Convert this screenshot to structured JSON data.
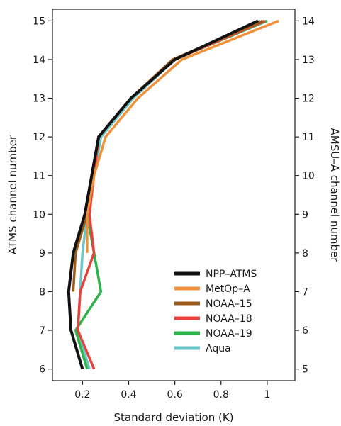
{
  "chart_data": {
    "type": "line",
    "xlabel": "Standard deviation (K)",
    "ylabel": "ATMS channel number",
    "y2label": "AMSU–A channel number",
    "xlim": [
      0.07,
      1.12
    ],
    "ylim": [
      5.7,
      15.3
    ],
    "xticks": [
      {
        "value": 0.2,
        "label": "0.2"
      },
      {
        "value": 0.4,
        "label": "0.4"
      },
      {
        "value": 0.6,
        "label": "0.6"
      },
      {
        "value": 0.8,
        "label": "0.8"
      },
      {
        "value": 1.0,
        "label": "1"
      }
    ],
    "yticks": [
      {
        "value": 6,
        "label": "6"
      },
      {
        "value": 7,
        "label": "7"
      },
      {
        "value": 8,
        "label": "8"
      },
      {
        "value": 9,
        "label": "9"
      },
      {
        "value": 10,
        "label": "10"
      },
      {
        "value": 11,
        "label": "11"
      },
      {
        "value": 12,
        "label": "12"
      },
      {
        "value": 13,
        "label": "13"
      },
      {
        "value": 14,
        "label": "14"
      },
      {
        "value": 15,
        "label": "15"
      }
    ],
    "y2ticks": [
      {
        "value": 6,
        "label": "5"
      },
      {
        "value": 7,
        "label": "6"
      },
      {
        "value": 8,
        "label": "7"
      },
      {
        "value": 9,
        "label": "8"
      },
      {
        "value": 10,
        "label": "9"
      },
      {
        "value": 11,
        "label": "10"
      },
      {
        "value": 12,
        "label": "11"
      },
      {
        "value": 13,
        "label": "12"
      },
      {
        "value": 14,
        "label": "13"
      },
      {
        "value": 15,
        "label": "14"
      }
    ],
    "legend_position": "bottom-right",
    "series": [
      {
        "name": "Aqua",
        "color": "#6cc5c5",
        "points": [
          [
            0.23,
            6
          ],
          [
            0.18,
            7
          ],
          [
            0.2,
            9
          ],
          [
            0.22,
            10
          ],
          [
            0.28,
            12
          ],
          [
            0.42,
            13
          ],
          [
            0.6,
            14
          ],
          [
            0.97,
            15
          ]
        ]
      },
      {
        "name": "NOAA–19",
        "color": "#2db34a",
        "points": [
          [
            0.22,
            6
          ],
          [
            0.17,
            7
          ],
          [
            0.28,
            8
          ],
          [
            0.22,
            10
          ],
          [
            0.27,
            12
          ],
          [
            0.41,
            13
          ],
          [
            0.6,
            14
          ],
          [
            1.0,
            15
          ]
        ]
      },
      {
        "name": "NOAA–18",
        "color": "#e8413c",
        "points": [
          [
            0.25,
            6
          ],
          [
            0.18,
            7
          ],
          [
            0.19,
            8
          ],
          [
            0.25,
            9
          ],
          [
            0.23,
            10
          ],
          [
            0.27,
            12
          ],
          [
            0.41,
            13
          ],
          [
            0.6,
            14
          ],
          [
            0.99,
            15
          ]
        ]
      },
      {
        "name": "NOAA–15",
        "color": "#9c5a1a",
        "points": [
          [
            0.16,
            8
          ],
          [
            0.17,
            9
          ],
          [
            0.22,
            10
          ],
          [
            0.24,
            11
          ],
          [
            0.27,
            12
          ],
          [
            0.41,
            13
          ],
          [
            0.59,
            14
          ],
          [
            0.98,
            15
          ]
        ]
      },
      {
        "name": "MetOp–A",
        "color": "#f0913a",
        "points": [
          [
            0.22,
            9
          ],
          [
            0.22,
            10
          ],
          [
            0.25,
            11
          ],
          [
            0.3,
            12
          ],
          [
            0.44,
            13
          ],
          [
            0.63,
            14
          ],
          [
            1.05,
            15
          ]
        ]
      },
      {
        "name": "NPP–ATMS",
        "color": "#111111",
        "points": [
          [
            0.2,
            6
          ],
          [
            0.15,
            7
          ],
          [
            0.14,
            8
          ],
          [
            0.16,
            9
          ],
          [
            0.21,
            10
          ],
          [
            0.27,
            12
          ],
          [
            0.41,
            13
          ],
          [
            0.6,
            14
          ],
          [
            0.96,
            15
          ]
        ]
      }
    ],
    "legend_order": [
      "NPP–ATMS",
      "MetOp–A",
      "NOAA–15",
      "NOAA–18",
      "NOAA–19",
      "Aqua"
    ]
  }
}
